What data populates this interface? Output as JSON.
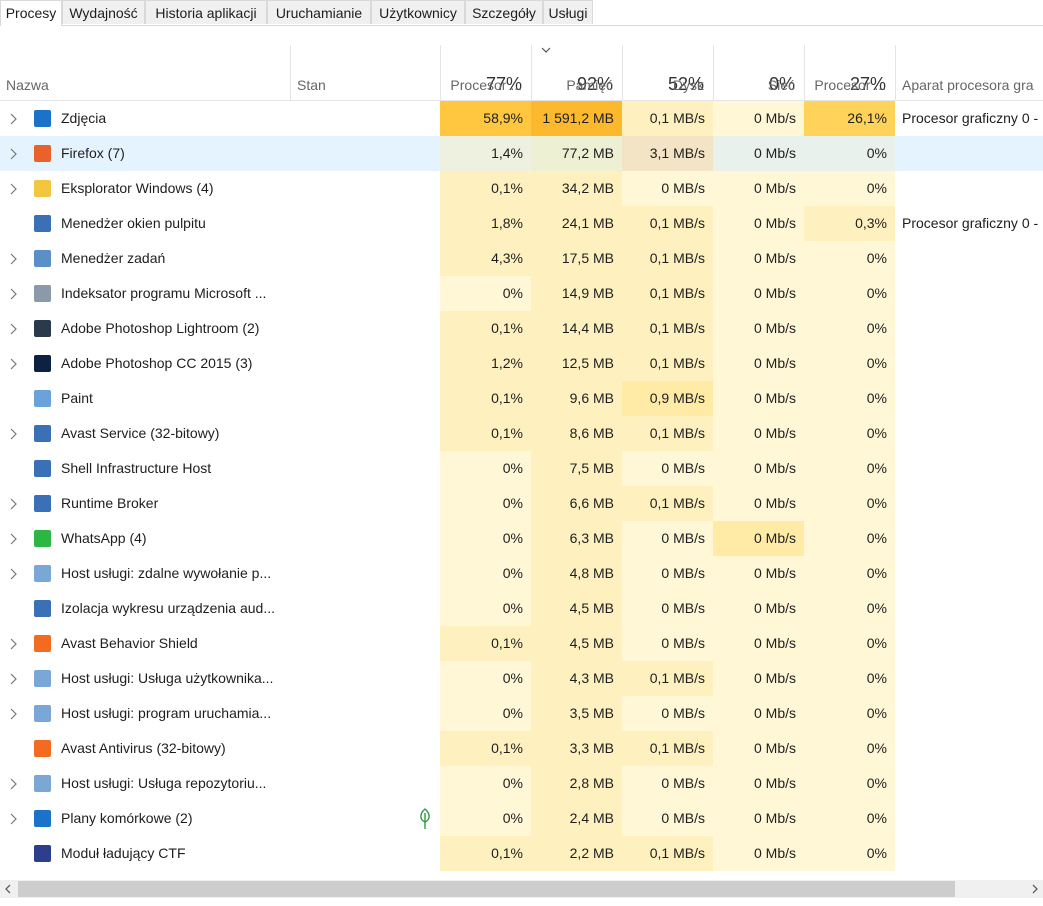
{
  "tabs": [
    "Procesy",
    "Wydajność",
    "Historia aplikacji",
    "Uruchamianie",
    "Użytkownicy",
    "Szczegóły",
    "Usługi"
  ],
  "header": {
    "name": "Nazwa",
    "status": "Stan",
    "metrics": [
      {
        "percent": "77%",
        "label": "Procesor ..."
      },
      {
        "percent": "92%",
        "label": "Pamięć"
      },
      {
        "percent": "52%",
        "label": "Dysk"
      },
      {
        "percent": "0%",
        "label": "Sieć"
      },
      {
        "percent": "27%",
        "label": "Procesor ..."
      }
    ],
    "gpu_engine": "Aparat procesora gra"
  },
  "rows": [
    {
      "name": "Zdjęcia",
      "expandable": true,
      "cells": [
        "58,9%",
        "1 591,2 MB",
        "0,1 MB/s",
        "0 Mb/s",
        "26,1%"
      ],
      "gpu_engine": "Procesor graficzny 0 -"
    },
    {
      "name": "Firefox (7)",
      "expandable": true,
      "cells": [
        "1,4%",
        "77,2 MB",
        "3,1 MB/s",
        "0 Mb/s",
        "0%"
      ]
    },
    {
      "name": "Eksplorator Windows (4)",
      "expandable": true,
      "cells": [
        "0,1%",
        "34,2 MB",
        "0 MB/s",
        "0 Mb/s",
        "0%"
      ]
    },
    {
      "name": "Menedżer okien pulpitu",
      "expandable": false,
      "cells": [
        "1,8%",
        "24,1 MB",
        "0,1 MB/s",
        "0 Mb/s",
        "0,3%"
      ],
      "gpu_engine": "Procesor graficzny 0 -"
    },
    {
      "name": "Menedżer zadań",
      "expandable": true,
      "cells": [
        "4,3%",
        "17,5 MB",
        "0,1 MB/s",
        "0 Mb/s",
        "0%"
      ]
    },
    {
      "name": "Indeksator programu Microsoft ...",
      "expandable": true,
      "cells": [
        "0%",
        "14,9 MB",
        "0,1 MB/s",
        "0 Mb/s",
        "0%"
      ]
    },
    {
      "name": "Adobe Photoshop Lightroom (2)",
      "expandable": true,
      "cells": [
        "0,1%",
        "14,4 MB",
        "0,1 MB/s",
        "0 Mb/s",
        "0%"
      ]
    },
    {
      "name": "Adobe Photoshop CC 2015 (3)",
      "expandable": true,
      "cells": [
        "1,2%",
        "12,5 MB",
        "0,1 MB/s",
        "0 Mb/s",
        "0%"
      ]
    },
    {
      "name": "Paint",
      "expandable": false,
      "cells": [
        "0,1%",
        "9,6 MB",
        "0,9 MB/s",
        "0 Mb/s",
        "0%"
      ]
    },
    {
      "name": "Avast Service (32-bitowy)",
      "expandable": true,
      "cells": [
        "0,1%",
        "8,6 MB",
        "0,1 MB/s",
        "0 Mb/s",
        "0%"
      ]
    },
    {
      "name": "Shell Infrastructure Host",
      "expandable": false,
      "cells": [
        "0%",
        "7,5 MB",
        "0 MB/s",
        "0 Mb/s",
        "0%"
      ]
    },
    {
      "name": "Runtime Broker",
      "expandable": true,
      "cells": [
        "0%",
        "6,6 MB",
        "0,1 MB/s",
        "0 Mb/s",
        "0%"
      ]
    },
    {
      "name": "WhatsApp (4)",
      "expandable": true,
      "cells": [
        "0%",
        "6,3 MB",
        "0 MB/s",
        "0 Mb/s",
        "0%"
      ]
    },
    {
      "name": "Host usługi: zdalne wywołanie p...",
      "expandable": true,
      "cells": [
        "0%",
        "4,8 MB",
        "0 MB/s",
        "0 Mb/s",
        "0%"
      ]
    },
    {
      "name": "Izolacja wykresu urządzenia aud...",
      "expandable": false,
      "cells": [
        "0%",
        "4,5 MB",
        "0 MB/s",
        "0 Mb/s",
        "0%"
      ]
    },
    {
      "name": "Avast Behavior Shield",
      "expandable": true,
      "cells": [
        "0,1%",
        "4,5 MB",
        "0 MB/s",
        "0 Mb/s",
        "0%"
      ]
    },
    {
      "name": "Host usługi: Usługa użytkownika...",
      "expandable": true,
      "cells": [
        "0%",
        "4,3 MB",
        "0,1 MB/s",
        "0 Mb/s",
        "0%"
      ]
    },
    {
      "name": "Host usługi: program uruchamia...",
      "expandable": true,
      "cells": [
        "0%",
        "3,5 MB",
        "0 MB/s",
        "0 Mb/s",
        "0%"
      ]
    },
    {
      "name": "Avast Antivirus (32-bitowy)",
      "expandable": false,
      "cells": [
        "0,1%",
        "3,3 MB",
        "0,1 MB/s",
        "0 Mb/s",
        "0%"
      ]
    },
    {
      "name": "Host usługi: Usługa repozytoriu...",
      "expandable": true,
      "cells": [
        "0%",
        "2,8 MB",
        "0 MB/s",
        "0 Mb/s",
        "0%"
      ]
    },
    {
      "name": "Plany komórkowe (2)",
      "expandable": true,
      "cells": [
        "0%",
        "2,4 MB",
        "0 MB/s",
        "0 Mb/s",
        "0%"
      ]
    },
    {
      "name": "Moduł ładujący CTF",
      "expandable": false,
      "cells": [
        "0,1%",
        "2,2 MB",
        "0,1 MB/s",
        "0 Mb/s",
        "0%"
      ]
    }
  ]
}
